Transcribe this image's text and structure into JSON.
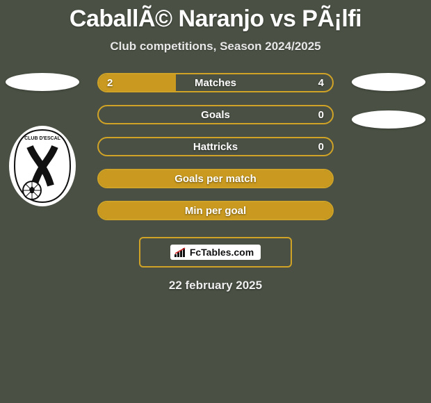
{
  "title": "CaballÃ© Naranjo vs PÃ¡lfi",
  "subtitle": "Club competitions, Season 2024/2025",
  "colors": {
    "background": "#4a5144",
    "accent": "#d0a326",
    "fill": "#c99a1f",
    "text": "#ffffff"
  },
  "bars": [
    {
      "label": "Matches",
      "left": "2",
      "right": "4",
      "fill_left_pct": 33,
      "fill_full": false,
      "show_vals": true
    },
    {
      "label": "Goals",
      "left": "",
      "right": "0",
      "fill_left_pct": 0,
      "fill_full": false,
      "show_vals": true
    },
    {
      "label": "Hattricks",
      "left": "",
      "right": "0",
      "fill_left_pct": 0,
      "fill_full": false,
      "show_vals": true
    },
    {
      "label": "Goals per match",
      "left": "",
      "right": "",
      "fill_left_pct": 0,
      "fill_full": true,
      "show_vals": false
    },
    {
      "label": "Min per goal",
      "left": "",
      "right": "",
      "fill_left_pct": 0,
      "fill_full": true,
      "show_vals": false
    }
  ],
  "footer_brand": "FcTables.com",
  "date": "22 february 2025"
}
